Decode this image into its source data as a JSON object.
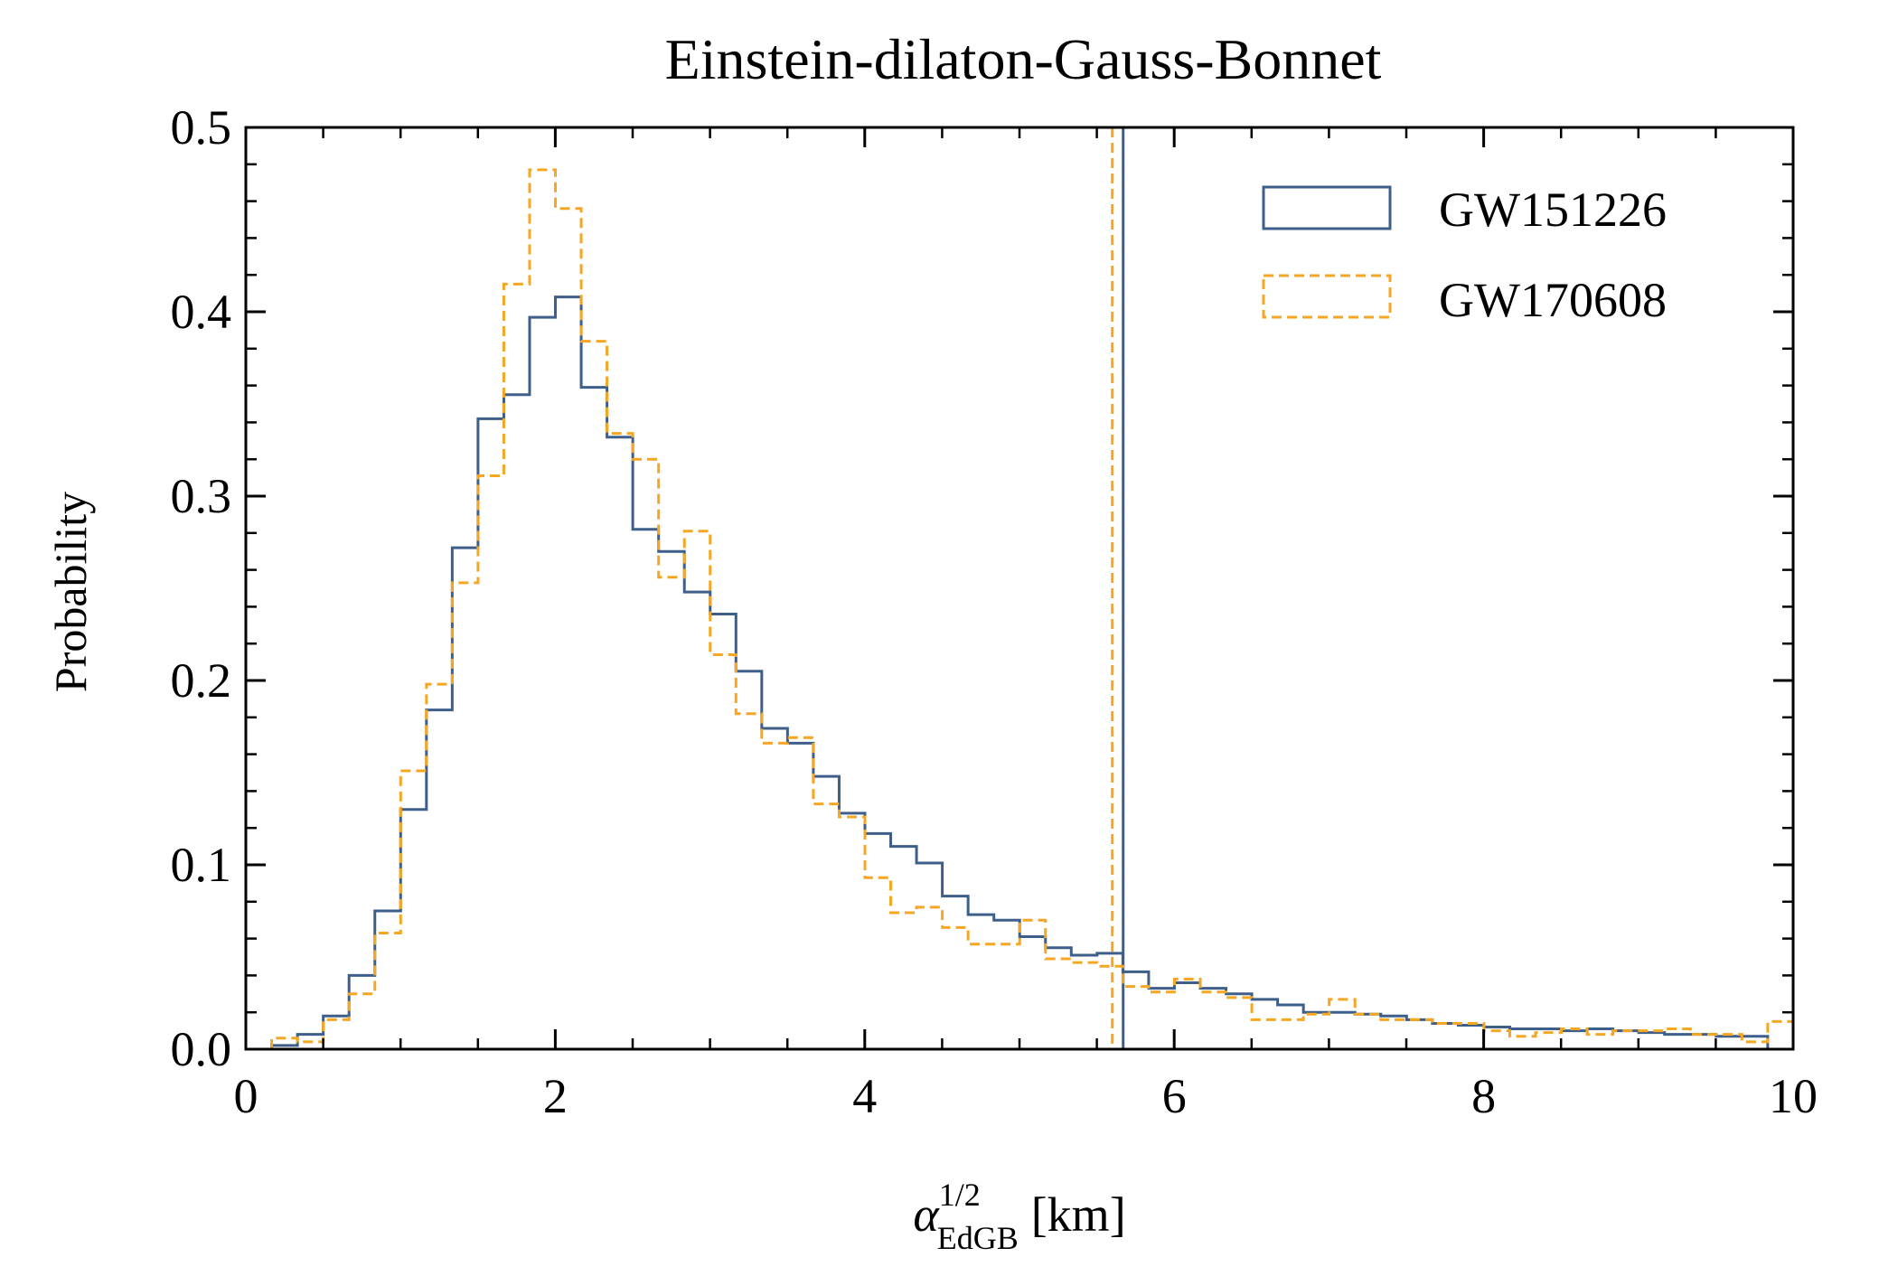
{
  "chart_data": {
    "type": "histogram",
    "title": "Einstein-dilaton-Gauss-Bonnet",
    "xlabel": {
      "symbol": "α",
      "superscript": "1/2",
      "subscript": "EdGB",
      "unit": "[km]"
    },
    "ylabel": "Probability",
    "xlim": [
      0,
      10
    ],
    "ylim": [
      0,
      0.5
    ],
    "xticks": [
      0,
      2,
      4,
      6,
      8,
      10
    ],
    "xtick_labels": [
      "0",
      "2",
      "4",
      "6",
      "8",
      "10"
    ],
    "yticks": [
      0.0,
      0.1,
      0.2,
      0.3,
      0.4,
      0.5
    ],
    "ytick_labels": [
      "0.0",
      "0.1",
      "0.2",
      "0.3",
      "0.4",
      "0.5"
    ],
    "minor_xtick_step": 0.5,
    "minor_ytick_step": 0.02,
    "legend_position": "top-right",
    "bin_width": 0.1667,
    "bin_start": 0.167,
    "series": [
      {
        "name": "GW151226",
        "color": "#3e5f8a",
        "line_style": "solid",
        "values": [
          0.002,
          0.008,
          0.018,
          0.04,
          0.075,
          0.13,
          0.184,
          0.272,
          0.342,
          0.355,
          0.397,
          0.408,
          0.359,
          0.332,
          0.282,
          0.27,
          0.248,
          0.236,
          0.205,
          0.174,
          0.166,
          0.148,
          0.128,
          0.117,
          0.11,
          0.101,
          0.083,
          0.073,
          0.07,
          0.061,
          0.055,
          0.051,
          0.052,
          0.042,
          0.033,
          0.036,
          0.033,
          0.03,
          0.027,
          0.024,
          0.02,
          0.02,
          0.019,
          0.018,
          0.016,
          0.014,
          0.013,
          0.012,
          0.011,
          0.011,
          0.01,
          0.011,
          0.01,
          0.009,
          0.008,
          0.008,
          0.007,
          0.007
        ],
        "upper_bound": 5.67
      },
      {
        "name": "GW170608",
        "color": "#f5a623",
        "line_style": "dashed",
        "values": [
          0.006,
          0.004,
          0.016,
          0.03,
          0.063,
          0.151,
          0.198,
          0.253,
          0.311,
          0.415,
          0.477,
          0.456,
          0.384,
          0.334,
          0.32,
          0.256,
          0.281,
          0.214,
          0.182,
          0.166,
          0.169,
          0.133,
          0.126,
          0.093,
          0.074,
          0.077,
          0.066,
          0.057,
          0.057,
          0.07,
          0.049,
          0.047,
          0.045,
          0.034,
          0.031,
          0.038,
          0.031,
          0.028,
          0.016,
          0.016,
          0.019,
          0.027,
          0.019,
          0.016,
          0.016,
          0.014,
          0.014,
          0.01,
          0.007,
          0.009,
          0.011,
          0.008,
          0.01,
          0.01,
          0.011,
          0.008,
          0.008,
          0.004,
          0.015
        ],
        "upper_bound": 5.6
      }
    ]
  }
}
